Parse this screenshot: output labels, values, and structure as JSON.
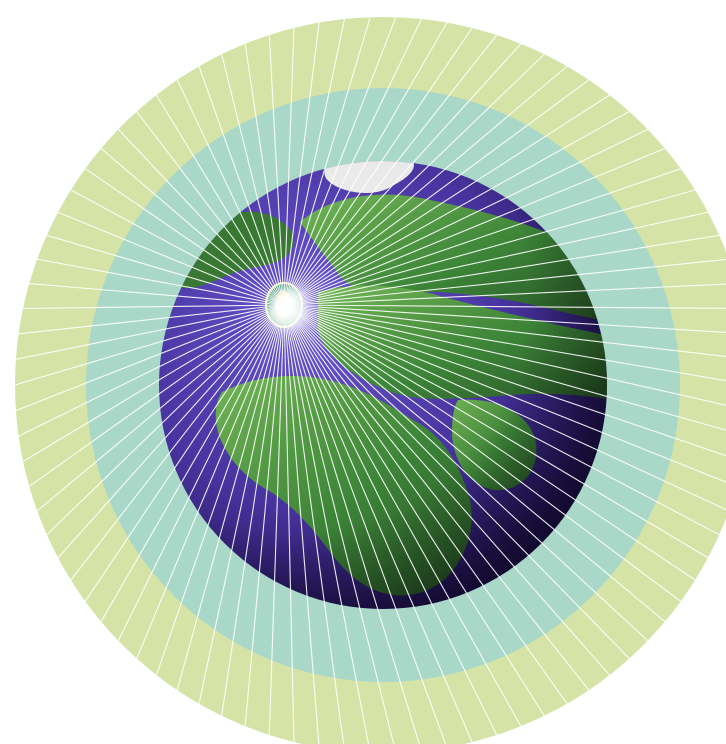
{
  "image": {
    "subject": "globe-with-radiating-rays",
    "colors": {
      "background": "#ffffff",
      "outer_ring": "#d5e3a6",
      "inner_ring": "#a9d8c9",
      "ocean": "#4b36a6",
      "ocean_dark": "#2a1866",
      "land": "#3f8f3a",
      "land_light": "#7fc25c",
      "ice": "#f2f2f2",
      "rays": "#ffffff",
      "focus_highlight": "#d8c25a"
    }
  }
}
